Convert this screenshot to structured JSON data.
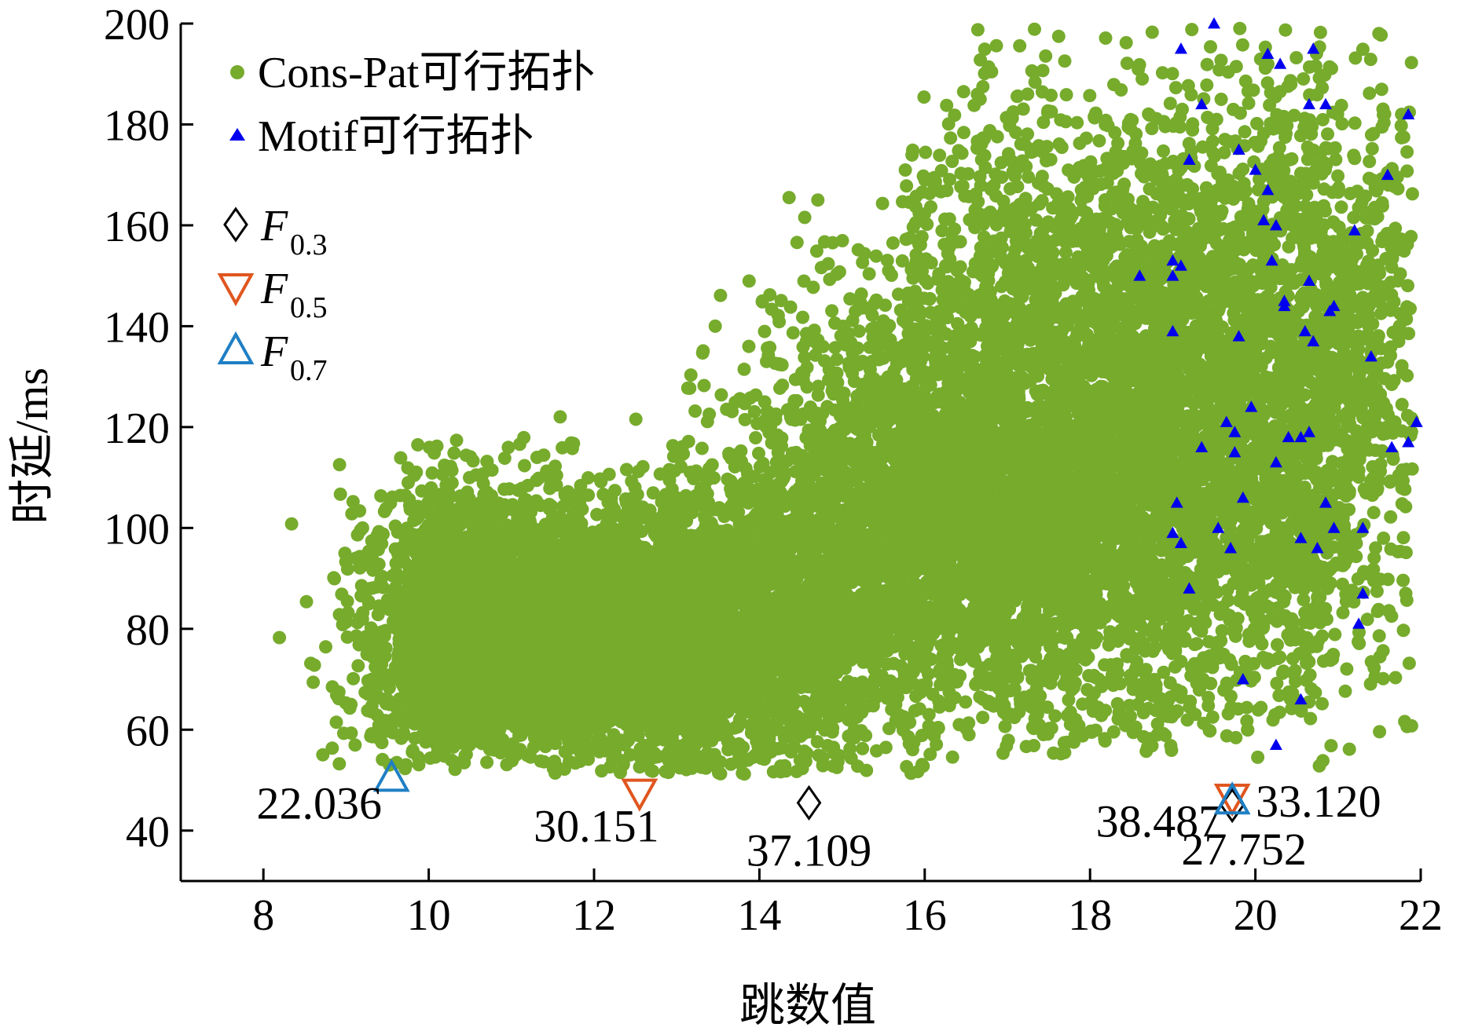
{
  "chart_data": {
    "type": "scatter",
    "xlabel": "跳数值",
    "ylabel": "时延/ms",
    "xlim": [
      7,
      22
    ],
    "ylim": [
      30,
      200
    ],
    "x_ticks": [
      8,
      10,
      12,
      14,
      16,
      18,
      20,
      22
    ],
    "y_ticks": [
      40,
      60,
      80,
      100,
      120,
      140,
      160,
      180,
      200
    ],
    "grid": false,
    "legend_position": "top-left",
    "series": [
      {
        "name": "Cons-Pat可行拓扑",
        "marker": "circle",
        "color": "#76ab2c",
        "clusters": [
          {
            "cx": 11.2,
            "cy": 80,
            "sx": 1.1,
            "sy": 13,
            "xmin": 9.6,
            "xmax": 14.5,
            "ymin": 52,
            "ymax": 118,
            "n": 3000
          },
          {
            "cx": 13.4,
            "cy": 78,
            "sx": 1.2,
            "sy": 15,
            "xmin": 11.5,
            "xmax": 16.5,
            "ymin": 51,
            "ymax": 125,
            "n": 2600
          },
          {
            "cx": 16.3,
            "cy": 105,
            "sx": 1.3,
            "sy": 22,
            "xmin": 13.0,
            "xmax": 18.8,
            "ymin": 55,
            "ymax": 175,
            "n": 3400
          },
          {
            "cx": 18.6,
            "cy": 115,
            "sx": 1.1,
            "sy": 28,
            "xmin": 16.5,
            "xmax": 21.9,
            "ymin": 55,
            "ymax": 200,
            "n": 2800
          },
          {
            "cx": 20.7,
            "cy": 130,
            "sx": 0.9,
            "sy": 33,
            "xmin": 18.8,
            "xmax": 21.9,
            "ymin": 52,
            "ymax": 199,
            "n": 1700
          },
          {
            "cx": 10.0,
            "cy": 78,
            "sx": 0.6,
            "sy": 16,
            "xmin": 7.6,
            "xmax": 11.5,
            "ymin": 53,
            "ymax": 120,
            "n": 600
          },
          {
            "cx": 17.5,
            "cy": 155,
            "sx": 1.6,
            "sy": 20,
            "xmin": 15.8,
            "xmax": 21.9,
            "ymin": 130,
            "ymax": 200,
            "n": 900
          }
        ]
      },
      {
        "name": "Motif可行拓扑",
        "marker": "triangle",
        "color": "#0000ee",
        "points": [
          [
            19.1,
            195
          ],
          [
            19.5,
            200
          ],
          [
            20.15,
            194
          ],
          [
            20.3,
            192
          ],
          [
            20.7,
            195
          ],
          [
            19.35,
            184
          ],
          [
            20.65,
            184
          ],
          [
            20.85,
            184
          ],
          [
            21.85,
            182
          ],
          [
            19.2,
            173
          ],
          [
            19.8,
            175
          ],
          [
            20.0,
            171
          ],
          [
            20.15,
            167
          ],
          [
            21.6,
            170
          ],
          [
            20.1,
            161
          ],
          [
            20.25,
            160
          ],
          [
            21.2,
            159
          ],
          [
            18.6,
            150
          ],
          [
            19.0,
            150
          ],
          [
            19.0,
            153
          ],
          [
            19.1,
            152
          ],
          [
            20.2,
            153
          ],
          [
            20.65,
            149
          ],
          [
            20.35,
            145
          ],
          [
            20.35,
            144
          ],
          [
            20.95,
            144
          ],
          [
            20.9,
            143
          ],
          [
            19.0,
            139
          ],
          [
            19.8,
            138
          ],
          [
            20.6,
            139
          ],
          [
            20.7,
            137
          ],
          [
            21.4,
            134
          ],
          [
            19.65,
            121
          ],
          [
            19.75,
            119
          ],
          [
            19.95,
            124
          ],
          [
            21.95,
            121
          ],
          [
            19.35,
            116
          ],
          [
            19.75,
            115
          ],
          [
            20.25,
            113
          ],
          [
            20.4,
            118
          ],
          [
            20.55,
            118
          ],
          [
            20.65,
            119
          ],
          [
            21.65,
            116
          ],
          [
            21.85,
            117
          ],
          [
            19.05,
            105
          ],
          [
            19.85,
            106
          ],
          [
            20.85,
            105
          ],
          [
            19.0,
            99
          ],
          [
            19.1,
            97
          ],
          [
            19.55,
            100
          ],
          [
            19.7,
            96
          ],
          [
            20.55,
            98
          ],
          [
            20.75,
            96
          ],
          [
            20.95,
            100
          ],
          [
            21.3,
            100
          ],
          [
            19.2,
            88
          ],
          [
            21.3,
            87
          ],
          [
            21.25,
            81
          ],
          [
            19.85,
            70
          ],
          [
            20.55,
            66
          ],
          [
            20.25,
            57
          ]
        ]
      }
    ],
    "markers": [
      {
        "label": "F",
        "subscript": "0.3",
        "symbol": "diamond",
        "color": "#000000",
        "x": 14.6,
        "y": 45.5,
        "value_label": "37.109"
      },
      {
        "label": "F",
        "subscript": "0.5",
        "symbol": "triangle-down",
        "color": "#e0561f",
        "x": 12.55,
        "y": 47.5,
        "value_label": "30.151"
      },
      {
        "label": "F",
        "subscript": "0.7",
        "symbol": "triangle-up",
        "color": "#1f7fc4",
        "x": 9.55,
        "y": 50.5,
        "value_label": "22.036"
      },
      {
        "label": "F",
        "subscript": "0.3",
        "symbol": "diamond",
        "color": "#000000",
        "x": 19.72,
        "y": 45,
        "value_label": "38.487"
      },
      {
        "label": "F",
        "subscript": "0.5",
        "symbol": "triangle-down",
        "color": "#e0561f",
        "x": 19.72,
        "y": 46.5,
        "value_label": "33.120"
      },
      {
        "label": "F",
        "subscript": "0.7",
        "symbol": "triangle-up",
        "color": "#1f7fc4",
        "x": 19.72,
        "y": 46,
        "value_label": "27.752"
      }
    ]
  }
}
